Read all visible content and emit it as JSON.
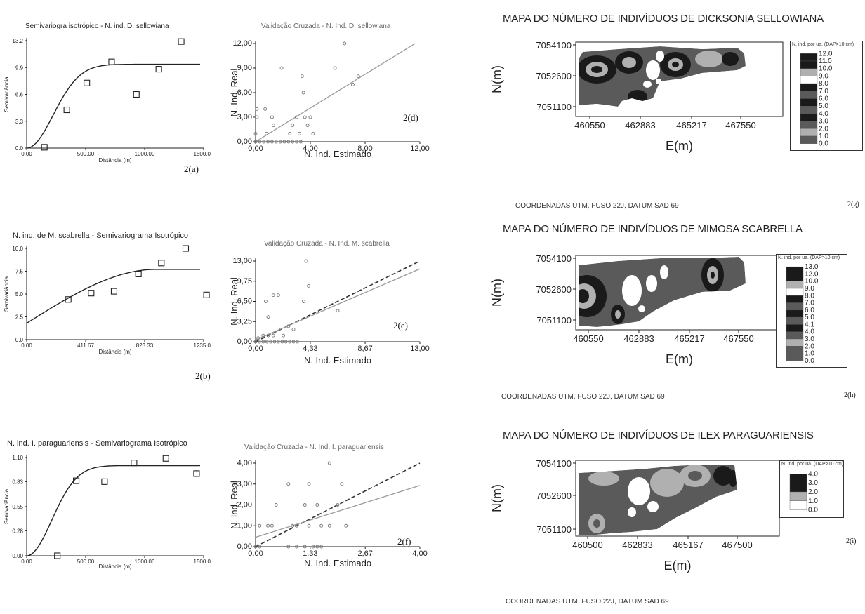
{
  "chart_data": [
    {
      "id": "a",
      "type": "scatter",
      "title": "Semivariogra isotrópico - N. ind. D. sellowiana",
      "xlabel": "Distância (m)",
      "ylabel": "Semivariância",
      "panel_label": "2(a)",
      "xlim": [
        0,
        1500
      ],
      "ylim": [
        0,
        13.2
      ],
      "xticks": [
        "0.00",
        "500.00",
        "1000.00",
        "1500.00"
      ],
      "xtick_values": [
        0,
        500,
        1000,
        1500
      ],
      "yticks": [
        "0.0",
        "3.3",
        "6.6",
        "9.9",
        "13.2"
      ],
      "ytick_values": [
        0,
        3.3,
        6.6,
        9.9,
        13.2
      ],
      "points": [
        [
          150,
          0.1
        ],
        [
          340,
          4.7
        ],
        [
          510,
          8.0
        ],
        [
          720,
          10.6
        ],
        [
          930,
          6.6
        ],
        [
          1120,
          9.7
        ],
        [
          1310,
          13.1
        ]
      ],
      "model": {
        "type": "gaussian",
        "nugget": 0,
        "sill": 10.3,
        "range": 550
      }
    },
    {
      "id": "b",
      "type": "scatter",
      "title": "N. ind. de M. scabrella - Semivariograma Isotrópico",
      "xlabel": "Distância (m)",
      "ylabel": "Semivariância",
      "panel_label": "2(b)",
      "xlim": [
        0,
        1235
      ],
      "ylim": [
        0,
        10
      ],
      "xticks": [
        "0.00",
        "411.67",
        "823.33",
        "1235.00"
      ],
      "xtick_values": [
        0,
        411.67,
        823.33,
        1235
      ],
      "yticks": [
        "0.0",
        "2.5",
        "5.0",
        "7.5",
        "10.0"
      ],
      "ytick_values": [
        0,
        2.5,
        5,
        7.5,
        10
      ],
      "points": [
        [
          290,
          4.4
        ],
        [
          450,
          5.1
        ],
        [
          610,
          5.3
        ],
        [
          780,
          7.2
        ],
        [
          940,
          8.4
        ],
        [
          1110,
          10.0
        ],
        [
          1255,
          4.9
        ]
      ],
      "model": {
        "type": "spherical",
        "nugget": 1.8,
        "sill": 7.7,
        "range": 900
      }
    },
    {
      "id": "c",
      "type": "scatter",
      "title": "N. ind. I. paraguariensis - Semivariograma  Isotrópico",
      "xlabel": "Distância (m)",
      "ylabel": "Semivariância",
      "panel_label": "",
      "xlim": [
        0,
        1500
      ],
      "ylim": [
        0,
        1.1
      ],
      "xticks": [
        "0.00",
        "500.00",
        "1000.00",
        "1500.00"
      ],
      "xtick_values": [
        0,
        500,
        1000,
        1500
      ],
      "yticks": [
        "0.00",
        "0.28",
        "0.55",
        "0.83",
        "1.10"
      ],
      "ytick_values": [
        0,
        0.28,
        0.55,
        0.83,
        1.1
      ],
      "points": [
        [
          260,
          0.0
        ],
        [
          420,
          0.84
        ],
        [
          660,
          0.83
        ],
        [
          910,
          1.04
        ],
        [
          1180,
          1.09
        ],
        [
          1440,
          0.92
        ]
      ],
      "model": {
        "type": "gaussian",
        "nugget": 0,
        "sill": 1.01,
        "range": 520
      }
    },
    {
      "id": "d",
      "type": "scatter",
      "title": "Validação Cruzada - N. Ind. D. sellowiana",
      "xlabel": "N. Ind. Estimado",
      "ylabel": "N. Ind. Real",
      "panel_label": "2(d)",
      "xlim": [
        0,
        12
      ],
      "ylim": [
        0,
        12
      ],
      "xticks": [
        "0,00",
        "4,00",
        "8,00",
        "12,00"
      ],
      "xtick_values": [
        0,
        4,
        8,
        12
      ],
      "yticks": [
        "0,00",
        "3,00",
        "6,00",
        "9,00",
        "12,00"
      ],
      "ytick_values": [
        0,
        3,
        6,
        9,
        12
      ],
      "points": [
        [
          0,
          0
        ],
        [
          0.3,
          0
        ],
        [
          0.6,
          0
        ],
        [
          0.9,
          0
        ],
        [
          1.2,
          0
        ],
        [
          1.5,
          0
        ],
        [
          1.8,
          0
        ],
        [
          2.1,
          0
        ],
        [
          2.4,
          0
        ],
        [
          2.7,
          0
        ],
        [
          3.0,
          0
        ],
        [
          3.3,
          0
        ],
        [
          0,
          1
        ],
        [
          0.8,
          1
        ],
        [
          2.5,
          1
        ],
        [
          3.2,
          1
        ],
        [
          4.2,
          1
        ],
        [
          1.3,
          2
        ],
        [
          2.7,
          2
        ],
        [
          3.8,
          2
        ],
        [
          0.1,
          3
        ],
        [
          1.2,
          3
        ],
        [
          3.0,
          3
        ],
        [
          3.6,
          3
        ],
        [
          4.0,
          3
        ],
        [
          0.1,
          4
        ],
        [
          0.7,
          4
        ],
        [
          3.5,
          6
        ],
        [
          1.9,
          9
        ],
        [
          3.4,
          8
        ],
        [
          5.8,
          9
        ],
        [
          6.5,
          12
        ],
        [
          7.1,
          7
        ],
        [
          7.5,
          8
        ]
      ],
      "fit_lines": [
        {
          "style": "solid",
          "intercept": 0,
          "slope": 1.03
        }
      ]
    },
    {
      "id": "e",
      "type": "scatter",
      "title": "Validação Cruzada - N. Ind. M. scabrella",
      "xlabel": "N. Ind. Estimado",
      "ylabel": "N. Ind. Real",
      "panel_label": "2(e)",
      "xlim": [
        0,
        13
      ],
      "ylim": [
        0,
        13
      ],
      "xticks": [
        "0,00",
        "4,33",
        "8,67",
        "13,00"
      ],
      "xtick_values": [
        0,
        4.33,
        8.67,
        13
      ],
      "yticks": [
        "0,00",
        "3,25",
        "6,50",
        "9,75",
        "13,00"
      ],
      "ytick_values": [
        0,
        3.25,
        6.5,
        9.75,
        13
      ],
      "points": [
        [
          0,
          0
        ],
        [
          0.3,
          0
        ],
        [
          0.6,
          0
        ],
        [
          0.9,
          0
        ],
        [
          1.2,
          0
        ],
        [
          1.5,
          0
        ],
        [
          1.8,
          0
        ],
        [
          2.1,
          0
        ],
        [
          2.4,
          0
        ],
        [
          2.7,
          0
        ],
        [
          3.0,
          0
        ],
        [
          3.3,
          0
        ],
        [
          0.2,
          0.6
        ],
        [
          0.6,
          1
        ],
        [
          1.0,
          1
        ],
        [
          1.4,
          1
        ],
        [
          2.2,
          1
        ],
        [
          1.8,
          2
        ],
        [
          2.6,
          2.5
        ],
        [
          3.0,
          2
        ],
        [
          1.0,
          4
        ],
        [
          0.8,
          6.5
        ],
        [
          1.4,
          7.5
        ],
        [
          1.8,
          7.5
        ],
        [
          3.8,
          6.5
        ],
        [
          4.2,
          9
        ],
        [
          4.0,
          13
        ],
        [
          6.5,
          5
        ]
      ],
      "fit_lines": [
        {
          "style": "dashed",
          "intercept": 0,
          "slope": 1.0
        },
        {
          "style": "solid",
          "intercept": 0.3,
          "slope": 0.88
        }
      ]
    },
    {
      "id": "f",
      "type": "scatter",
      "title": "Validação Cruzada - N. Ind. I. paraguariensis",
      "xlabel": "N. Ind. Estimado",
      "ylabel": "N. Ind. Real",
      "panel_label": "2(f)",
      "xlim": [
        0,
        4
      ],
      "ylim": [
        0,
        4
      ],
      "xticks": [
        "0,00",
        "1,33",
        "2,67",
        "4,00"
      ],
      "xtick_values": [
        0,
        1.33,
        2.67,
        4
      ],
      "yticks": [
        "0,00",
        "1,00",
        "2,00",
        "3,00",
        "4,00"
      ],
      "ytick_values": [
        0,
        1,
        2,
        3,
        4
      ],
      "points": [
        [
          0,
          0
        ],
        [
          0.1,
          0
        ],
        [
          0.8,
          0
        ],
        [
          1.0,
          0
        ],
        [
          1.2,
          0
        ],
        [
          1.4,
          0
        ],
        [
          1.5,
          0
        ],
        [
          1.6,
          0
        ],
        [
          0.1,
          1
        ],
        [
          0.3,
          1
        ],
        [
          0.4,
          1
        ],
        [
          0.9,
          1
        ],
        [
          1.0,
          1
        ],
        [
          1.3,
          1
        ],
        [
          1.6,
          1
        ],
        [
          1.8,
          1
        ],
        [
          2.2,
          1
        ],
        [
          0.5,
          2
        ],
        [
          1.2,
          2
        ],
        [
          1.5,
          2
        ],
        [
          2.0,
          2
        ],
        [
          0.8,
          3
        ],
        [
          1.3,
          3
        ],
        [
          2.1,
          3
        ],
        [
          1.8,
          4
        ]
      ],
      "fit_lines": [
        {
          "style": "dashed",
          "intercept": 0,
          "slope": 1.0
        },
        {
          "style": "solid",
          "intercept": 0.45,
          "slope": 0.62
        }
      ]
    }
  ],
  "maps": [
    {
      "title": "MAPA DO NÚMERO DE INDIVÍDUOS DE DICKSONIA SELLOWIANA",
      "footer": "COORDENADAS UTM, FUSO 22J, DATUM SAD 69",
      "panel_label": "2(g)",
      "ylabel": "N(m)",
      "xlabel": "E(m)",
      "xticks": [
        "460550",
        "462883",
        "465217",
        "467550"
      ],
      "yticks": [
        "7054100",
        "7052600",
        "7051100"
      ],
      "legend_title": "N. ind. por ua. (DAP>10 cm)",
      "legend_values": [
        "12.0",
        "11.0",
        "10.0",
        "9.0",
        "8.0",
        "7.0",
        "6.0",
        "5.0",
        "4.0",
        "3.0",
        "2.0",
        "1.0",
        "0.0"
      ]
    },
    {
      "title": "MAPA DO NÚMERO DE INDIVÍDUOS DE MIMOSA SCABRELLA",
      "footer": "COORDENADAS UTM, FUSO 22J, DATUM SAD 69",
      "panel_label": "2(h)",
      "ylabel": "N(m)",
      "xlabel": "E(m)",
      "xticks": [
        "460550",
        "462883",
        "465217",
        "467550"
      ],
      "yticks": [
        "7054100",
        "7052600",
        "7051100"
      ],
      "legend_title": "N. ind. por ua. (DAP>10 cm)",
      "legend_values": [
        "13.0",
        "12.0",
        "10.0",
        "9.0",
        "8.0",
        "7.0",
        "6.0",
        "5.0",
        "4.1",
        "4.0",
        "3.0",
        "2.0",
        "1.0",
        "0.0"
      ]
    },
    {
      "title": "MAPA DO NÚMERO DE INDIVÍDUOS DE ILEX PARAGUARIENSIS",
      "footer": "COORDENADAS UTM, FUSO 22J, DATUM SAD 69",
      "panel_label": "2(i)",
      "ylabel": "N(m)",
      "xlabel": "E(m)",
      "xticks": [
        "460500",
        "462833",
        "465167",
        "467500"
      ],
      "yticks": [
        "7054100",
        "7052600",
        "7051100"
      ],
      "legend_title": "N. ind. por ua. (DAP>10 cm)",
      "legend_values": [
        "4.0",
        "3.0",
        "2.0",
        "1.0",
        "0.0"
      ]
    }
  ],
  "colors": {
    "ink": "#222222",
    "grey_fit": "#9a9a9a",
    "map_dark": "#1a1a1a",
    "map_mid": "#5a5a5a",
    "map_light": "#b0b0b0",
    "map_white": "#ffffff"
  }
}
